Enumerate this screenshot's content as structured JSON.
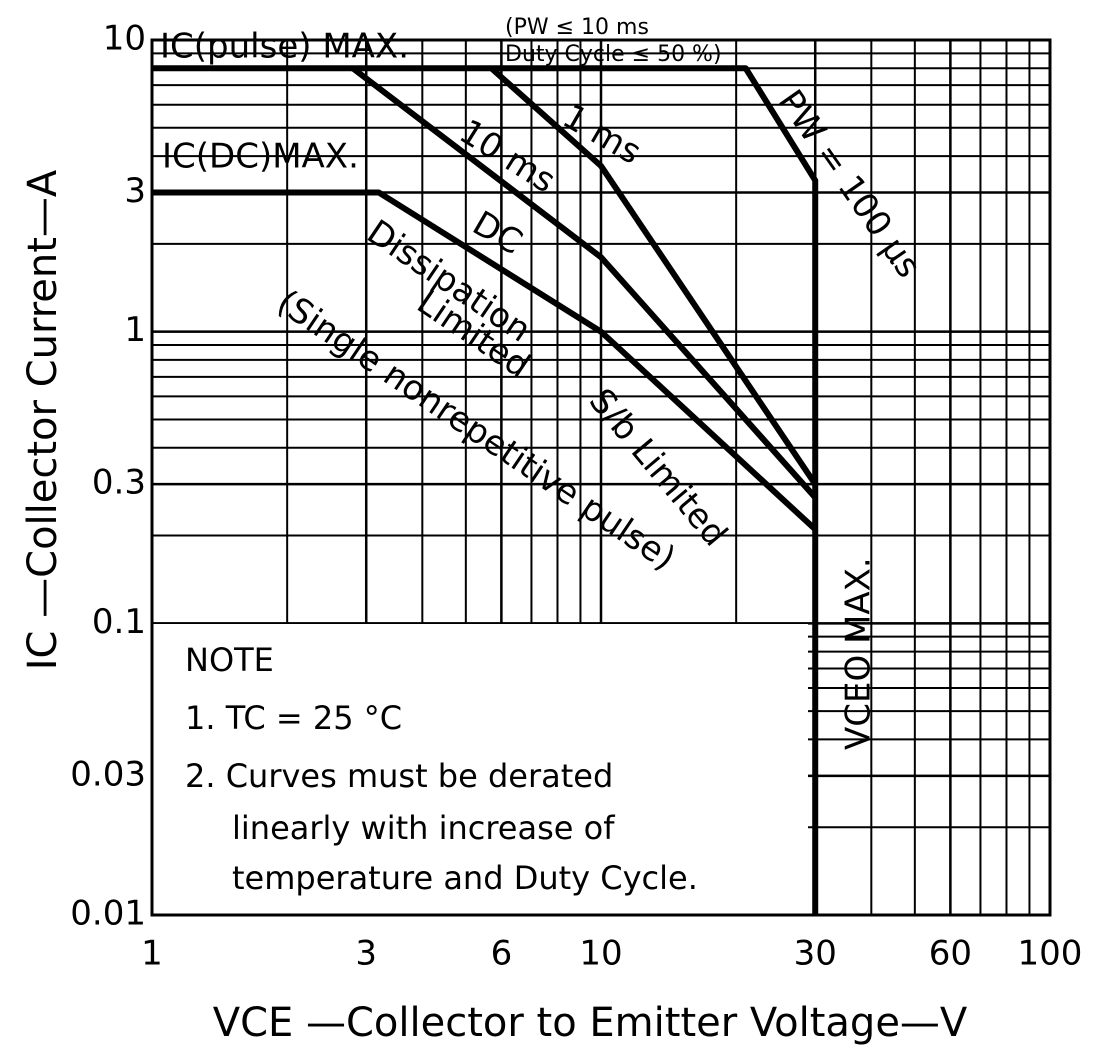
{
  "chart_data": {
    "type": "line",
    "x_label": "VCE —Collector to Emitter Voltage—V",
    "y_label": "IC —Collector Current—A",
    "log_x": true,
    "log_y": true,
    "grid": true,
    "xlim": [
      1,
      100
    ],
    "ylim": [
      0.01,
      10
    ],
    "xticks": [
      1,
      3,
      6,
      10,
      30,
      60,
      100
    ],
    "yticks": [
      10,
      3,
      1,
      0.3,
      0.1,
      0.03,
      0.01
    ],
    "series": [
      {
        "name": "PW = 100 μs",
        "color": "#000000",
        "x": [
          1,
          21,
          30,
          30
        ],
        "values": [
          8,
          8,
          3.3,
          0.01
        ]
      },
      {
        "name": "1 ms",
        "color": "#000000",
        "x": [
          5.7,
          10,
          30
        ],
        "values": [
          8,
          3.7,
          0.3
        ]
      },
      {
        "name": "10 ms",
        "color": "#000000",
        "x": [
          2.8,
          10,
          30
        ],
        "values": [
          8,
          1.8,
          0.27
        ]
      },
      {
        "name": "DC",
        "color": "#000000",
        "x": [
          1,
          3.2,
          10,
          30
        ],
        "values": [
          3,
          3,
          1,
          0.21
        ]
      }
    ],
    "annotations": [
      "IC(pulse) MAX.",
      "(PW ≤ 10 ms",
      "Duty Cycle ≤ 50 %)",
      "IC(DC)MAX.",
      "Dissipation",
      "Limited",
      "(Single nonrepetitive pulse)",
      "S/b Limited",
      "VCEO MAX."
    ],
    "note": [
      "NOTE",
      "1. TC = 25 °C",
      "2. Curves must be derated",
      "linearly with increase of",
      "temperature and Duty Cycle."
    ]
  }
}
